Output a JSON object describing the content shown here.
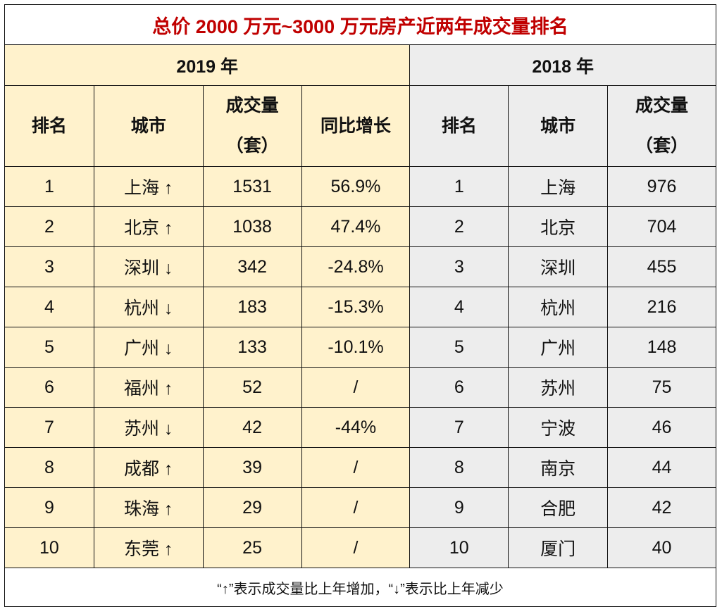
{
  "title": "总价 2000 万元~3000 万元房产近两年成交量排名",
  "y2019": {
    "label": "2019 年",
    "headers": {
      "rank": "排名",
      "city": "城市",
      "volume_l1": "成交量",
      "volume_l2": "（套）",
      "growth": "同比增长"
    },
    "rows": [
      {
        "rank": "1",
        "city": "上海 ↑",
        "volume": "1531",
        "growth": "56.9%"
      },
      {
        "rank": "2",
        "city": "北京 ↑",
        "volume": "1038",
        "growth": "47.4%"
      },
      {
        "rank": "3",
        "city": "深圳 ↓",
        "volume": "342",
        "growth": "-24.8%"
      },
      {
        "rank": "4",
        "city": "杭州 ↓",
        "volume": "183",
        "growth": "-15.3%"
      },
      {
        "rank": "5",
        "city": "广州 ↓",
        "volume": "133",
        "growth": "-10.1%"
      },
      {
        "rank": "6",
        "city": "福州 ↑",
        "volume": "52",
        "growth": "/"
      },
      {
        "rank": "7",
        "city": "苏州 ↓",
        "volume": "42",
        "growth": "-44%"
      },
      {
        "rank": "8",
        "city": "成都 ↑",
        "volume": "39",
        "growth": "/"
      },
      {
        "rank": "9",
        "city": "珠海 ↑",
        "volume": "29",
        "growth": "/"
      },
      {
        "rank": "10",
        "city": "东莞 ↑",
        "volume": "25",
        "growth": "/"
      }
    ]
  },
  "y2018": {
    "label": "2018 年",
    "headers": {
      "rank": "排名",
      "city": "城市",
      "volume_l1": "成交量",
      "volume_l2": "（套）"
    },
    "rows": [
      {
        "rank": "1",
        "city": "上海",
        "volume": "976"
      },
      {
        "rank": "2",
        "city": "北京",
        "volume": "704"
      },
      {
        "rank": "3",
        "city": "深圳",
        "volume": "455"
      },
      {
        "rank": "4",
        "city": "杭州",
        "volume": "216"
      },
      {
        "rank": "5",
        "city": "广州",
        "volume": "148"
      },
      {
        "rank": "6",
        "city": "苏州",
        "volume": "75"
      },
      {
        "rank": "7",
        "city": "宁波",
        "volume": "46"
      },
      {
        "rank": "8",
        "city": "南京",
        "volume": "44"
      },
      {
        "rank": "9",
        "city": "合肥",
        "volume": "42"
      },
      {
        "rank": "10",
        "city": "厦门",
        "volume": "40"
      }
    ]
  },
  "footnote": "“↑”表示成交量比上年增加，“↓”表示比上年减少",
  "colors": {
    "title": "#C00000",
    "y2019_bg": "#FFF2CC",
    "y2018_bg": "#EDEDED"
  }
}
